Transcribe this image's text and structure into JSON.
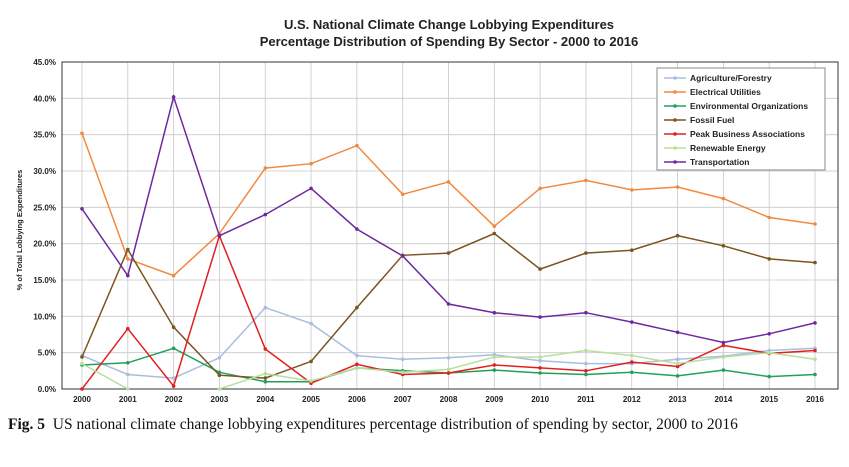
{
  "chart_data": {
    "type": "line",
    "title": "U.S. National Climate Change Lobbying Expenditures",
    "subtitle": "Percentage Distribution of Spending By Sector - 2000 to 2016",
    "ylabel": "% of Total Lobbying Expenditures",
    "xlabel": "",
    "ylim": [
      0,
      45
    ],
    "y_ticks": [
      "0.0%",
      "5.0%",
      "10.0%",
      "15.0%",
      "20.0%",
      "25.0%",
      "30.0%",
      "35.0%",
      "40.0%",
      "45.0%"
    ],
    "x": [
      "2000",
      "2001",
      "2002",
      "2003",
      "2004",
      "2005",
      "2006",
      "2007",
      "2008",
      "2009",
      "2010",
      "2011",
      "2012",
      "2013",
      "2014",
      "2015",
      "2016"
    ],
    "grid": true,
    "legend_position": "top-right",
    "series": [
      {
        "name": "Agriculture/Forestry",
        "color": "#a9bde0",
        "values": [
          4.6,
          2.0,
          1.5,
          4.3,
          11.2,
          9.0,
          4.6,
          4.1,
          4.3,
          4.7,
          3.9,
          3.5,
          3.5,
          4.1,
          4.5,
          5.3,
          5.6
        ]
      },
      {
        "name": "Electrical Utilities",
        "color": "#f08a40",
        "values": [
          35.2,
          17.9,
          15.6,
          21.4,
          30.4,
          31.0,
          33.5,
          26.8,
          28.5,
          22.4,
          27.6,
          28.7,
          27.4,
          27.8,
          26.2,
          23.6,
          22.7
        ]
      },
      {
        "name": "Environmental Organizations",
        "color": "#22a05a",
        "values": [
          3.3,
          3.6,
          5.6,
          2.3,
          1.0,
          1.0,
          2.9,
          2.5,
          2.2,
          2.6,
          2.2,
          2.0,
          2.3,
          1.8,
          2.6,
          1.7,
          2.0
        ]
      },
      {
        "name": "Fossil Fuel",
        "color": "#7a5520",
        "values": [
          4.4,
          19.2,
          8.5,
          1.9,
          1.5,
          3.8,
          11.2,
          18.4,
          18.7,
          21.4,
          16.5,
          18.7,
          19.1,
          21.1,
          19.7,
          17.9,
          17.4
        ]
      },
      {
        "name": "Peak Business Associations",
        "color": "#e02020",
        "values": [
          0.0,
          8.3,
          0.4,
          21.1,
          5.5,
          0.8,
          3.4,
          2.0,
          2.2,
          3.3,
          2.9,
          2.5,
          3.7,
          3.1,
          6.0,
          4.9,
          5.3
        ]
      },
      {
        "name": "Renewable Energy",
        "color": "#b8dfa0",
        "values": [
          3.5,
          0.0,
          null,
          0.0,
          2.1,
          1.1,
          2.9,
          2.3,
          2.7,
          4.4,
          4.4,
          5.3,
          4.6,
          3.5,
          4.4,
          5.0,
          4.1
        ]
      },
      {
        "name": "Transportation",
        "color": "#6d2aa0",
        "values": [
          24.8,
          15.6,
          40.2,
          21.1,
          24.0,
          27.6,
          22.0,
          18.3,
          11.7,
          10.5,
          9.9,
          10.5,
          9.2,
          7.8,
          6.4,
          7.6,
          9.1
        ]
      }
    ]
  },
  "caption": {
    "label": "Fig. 5",
    "text": "US national climate change lobbying expenditures percentage distribution of spending by sector, 2000 to 2016"
  }
}
